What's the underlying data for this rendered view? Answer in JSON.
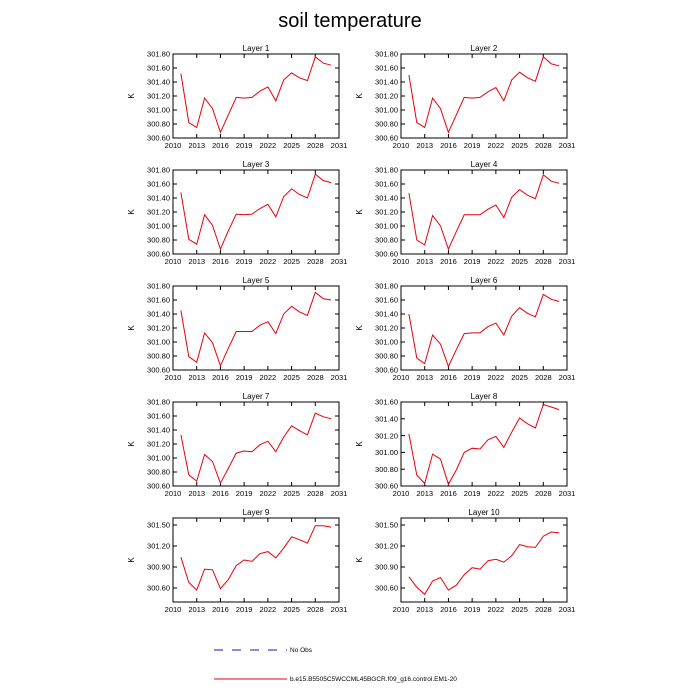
{
  "title": "soil temperature",
  "legend": [
    {
      "label": "No Obs",
      "color": "#1a1aa6",
      "dash": true
    },
    {
      "label": "b.e15.B5505C5WCCML45BGCR.f09_g16.control.EM1-20",
      "color": "#e8000b",
      "dash": false
    }
  ],
  "chart_data": [
    {
      "type": "line",
      "title": "Layer 1",
      "ylabel": "K",
      "xlim": [
        2010,
        2031
      ],
      "ylim": [
        300.6,
        301.8
      ],
      "yticks": [
        "300.60",
        "300.80",
        "301.00",
        "301.20",
        "301.40",
        "301.60",
        "301.80"
      ],
      "xticks": [
        "2010",
        "2013",
        "2016",
        "2019",
        "2022",
        "2025",
        "2028",
        "2031"
      ],
      "x": [
        2011,
        2012,
        2013,
        2014,
        2015,
        2016,
        2017,
        2018,
        2019,
        2020,
        2021,
        2022,
        2023,
        2024,
        2025,
        2026,
        2027,
        2028,
        2029,
        2030
      ],
      "series": [
        {
          "values": [
            301.52,
            300.82,
            300.75,
            301.17,
            301.02,
            300.68,
            300.93,
            301.18,
            301.17,
            301.18,
            301.27,
            301.33,
            301.13,
            301.43,
            301.53,
            301.46,
            301.42,
            301.76,
            301.67,
            301.64
          ]
        }
      ]
    },
    {
      "type": "line",
      "title": "Layer 2",
      "ylabel": "K",
      "xlim": [
        2010,
        2031
      ],
      "ylim": [
        300.6,
        301.8
      ],
      "yticks": [
        "300.60",
        "300.80",
        "301.00",
        "301.20",
        "301.40",
        "301.60",
        "301.80"
      ],
      "xticks": [
        "2010",
        "2013",
        "2016",
        "2019",
        "2022",
        "2025",
        "2028",
        "2031"
      ],
      "x": [
        2011,
        2012,
        2013,
        2014,
        2015,
        2016,
        2017,
        2018,
        2019,
        2020,
        2021,
        2022,
        2023,
        2024,
        2025,
        2026,
        2027,
        2028,
        2029,
        2030
      ],
      "series": [
        {
          "values": [
            301.5,
            300.82,
            300.75,
            301.17,
            301.02,
            300.68,
            300.93,
            301.18,
            301.17,
            301.18,
            301.26,
            301.32,
            301.13,
            301.43,
            301.54,
            301.46,
            301.41,
            301.76,
            301.66,
            301.63
          ]
        }
      ]
    },
    {
      "type": "line",
      "title": "Layer 3",
      "ylabel": "K",
      "xlim": [
        2010,
        2031
      ],
      "ylim": [
        300.6,
        301.8
      ],
      "yticks": [
        "300.60",
        "300.80",
        "301.00",
        "301.20",
        "301.40",
        "301.60",
        "301.80"
      ],
      "xticks": [
        "2010",
        "2013",
        "2016",
        "2019",
        "2022",
        "2025",
        "2028",
        "2031"
      ],
      "x": [
        2011,
        2012,
        2013,
        2014,
        2015,
        2016,
        2017,
        2018,
        2019,
        2020,
        2021,
        2022,
        2023,
        2024,
        2025,
        2026,
        2027,
        2028,
        2029,
        2030
      ],
      "series": [
        {
          "values": [
            301.48,
            300.81,
            300.74,
            301.16,
            301.01,
            300.67,
            300.93,
            301.17,
            301.16,
            301.17,
            301.25,
            301.31,
            301.13,
            301.42,
            301.53,
            301.45,
            301.4,
            301.74,
            301.65,
            301.62
          ]
        }
      ]
    },
    {
      "type": "line",
      "title": "Layer 4",
      "ylabel": "K",
      "xlim": [
        2010,
        2031
      ],
      "ylim": [
        300.6,
        301.8
      ],
      "yticks": [
        "300.60",
        "300.80",
        "301.00",
        "301.20",
        "301.40",
        "301.60",
        "301.80"
      ],
      "xticks": [
        "2010",
        "2013",
        "2016",
        "2019",
        "2022",
        "2025",
        "2028",
        "2031"
      ],
      "x": [
        2011,
        2012,
        2013,
        2014,
        2015,
        2016,
        2017,
        2018,
        2019,
        2020,
        2021,
        2022,
        2023,
        2024,
        2025,
        2026,
        2027,
        2028,
        2029,
        2030
      ],
      "series": [
        {
          "values": [
            301.47,
            300.8,
            300.73,
            301.15,
            301.0,
            300.67,
            300.92,
            301.16,
            301.16,
            301.16,
            301.24,
            301.3,
            301.12,
            301.41,
            301.52,
            301.44,
            301.39,
            301.73,
            301.64,
            301.61
          ]
        }
      ]
    },
    {
      "type": "line",
      "title": "Layer 5",
      "ylabel": "K",
      "xlim": [
        2010,
        2031
      ],
      "ylim": [
        300.6,
        301.8
      ],
      "yticks": [
        "300.60",
        "300.80",
        "301.00",
        "301.20",
        "301.40",
        "301.60",
        "301.80"
      ],
      "xticks": [
        "2010",
        "2013",
        "2016",
        "2019",
        "2022",
        "2025",
        "2028",
        "2031"
      ],
      "x": [
        2011,
        2012,
        2013,
        2014,
        2015,
        2016,
        2017,
        2018,
        2019,
        2020,
        2021,
        2022,
        2023,
        2024,
        2025,
        2026,
        2027,
        2028,
        2029,
        2030
      ],
      "series": [
        {
          "values": [
            301.45,
            300.79,
            300.71,
            301.13,
            300.99,
            300.66,
            300.91,
            301.15,
            301.15,
            301.15,
            301.24,
            301.29,
            301.12,
            301.4,
            301.51,
            301.43,
            301.38,
            301.71,
            301.62,
            301.6
          ]
        }
      ]
    },
    {
      "type": "line",
      "title": "Layer 6",
      "ylabel": "K",
      "xlim": [
        2010,
        2031
      ],
      "ylim": [
        300.6,
        301.8
      ],
      "yticks": [
        "300.60",
        "300.80",
        "301.00",
        "301.20",
        "301.40",
        "301.60",
        "301.80"
      ],
      "xticks": [
        "2010",
        "2013",
        "2016",
        "2019",
        "2022",
        "2025",
        "2028",
        "2031"
      ],
      "x": [
        2011,
        2012,
        2013,
        2014,
        2015,
        2016,
        2017,
        2018,
        2019,
        2020,
        2021,
        2022,
        2023,
        2024,
        2025,
        2026,
        2027,
        2028,
        2029,
        2030
      ],
      "series": [
        {
          "values": [
            301.4,
            300.77,
            300.69,
            301.1,
            300.97,
            300.65,
            300.89,
            301.12,
            301.13,
            301.13,
            301.22,
            301.27,
            301.1,
            301.37,
            301.49,
            301.41,
            301.36,
            301.68,
            301.61,
            301.58
          ]
        }
      ]
    },
    {
      "type": "line",
      "title": "Layer 7",
      "ylabel": "K",
      "xlim": [
        2010,
        2031
      ],
      "ylim": [
        300.6,
        301.8
      ],
      "yticks": [
        "300.60",
        "300.80",
        "301.00",
        "301.20",
        "301.40",
        "301.60",
        "301.80"
      ],
      "xticks": [
        "2010",
        "2013",
        "2016",
        "2019",
        "2022",
        "2025",
        "2028",
        "2031"
      ],
      "x": [
        2011,
        2012,
        2013,
        2014,
        2015,
        2016,
        2017,
        2018,
        2019,
        2020,
        2021,
        2022,
        2023,
        2024,
        2025,
        2026,
        2027,
        2028,
        2029,
        2030
      ],
      "series": [
        {
          "values": [
            301.33,
            300.76,
            300.67,
            301.05,
            300.95,
            300.64,
            300.85,
            301.07,
            301.1,
            301.09,
            301.19,
            301.24,
            301.09,
            301.3,
            301.46,
            301.39,
            301.33,
            301.64,
            301.59,
            301.56
          ]
        }
      ]
    },
    {
      "type": "line",
      "title": "Layer 8",
      "ylabel": "K",
      "xlim": [
        2010,
        2031
      ],
      "ylim": [
        300.6,
        301.6
      ],
      "yticks": [
        "300.60",
        "300.80",
        "301.00",
        "301.20",
        "301.40",
        "301.60"
      ],
      "xticks": [
        "2010",
        "2013",
        "2016",
        "2019",
        "2022",
        "2025",
        "2028",
        "2031"
      ],
      "x": [
        2011,
        2012,
        2013,
        2014,
        2015,
        2016,
        2017,
        2018,
        2019,
        2020,
        2021,
        2022,
        2023,
        2024,
        2025,
        2026,
        2027,
        2028,
        2029,
        2030
      ],
      "series": [
        {
          "values": [
            301.22,
            300.73,
            300.63,
            300.98,
            300.92,
            300.62,
            300.79,
            301.0,
            301.05,
            301.04,
            301.15,
            301.19,
            301.06,
            301.24,
            301.41,
            301.34,
            301.29,
            301.57,
            301.54,
            301.51
          ]
        }
      ]
    },
    {
      "type": "line",
      "title": "Layer 9",
      "ylabel": "K",
      "xlim": [
        2010,
        2031
      ],
      "ylim": [
        300.4,
        301.6
      ],
      "yticks": [
        "300.60",
        "300.90",
        "301.20",
        "301.50"
      ],
      "xticks": [
        "2010",
        "2013",
        "2016",
        "2019",
        "2022",
        "2025",
        "2028",
        "2031"
      ],
      "x": [
        2011,
        2012,
        2013,
        2014,
        2015,
        2016,
        2017,
        2018,
        2019,
        2020,
        2021,
        2022,
        2023,
        2024,
        2025,
        2026,
        2027,
        2028,
        2029,
        2030
      ],
      "series": [
        {
          "values": [
            301.04,
            300.68,
            300.57,
            300.87,
            300.86,
            300.59,
            300.72,
            300.92,
            301.0,
            300.98,
            301.09,
            301.12,
            301.03,
            301.17,
            301.33,
            301.29,
            301.24,
            301.49,
            301.49,
            301.47
          ]
        }
      ]
    },
    {
      "type": "line",
      "title": "Layer 10",
      "ylabel": "K",
      "xlim": [
        2010,
        2031
      ],
      "ylim": [
        300.4,
        301.6
      ],
      "yticks": [
        "300.60",
        "300.90",
        "301.20",
        "301.50"
      ],
      "xticks": [
        "2010",
        "2013",
        "2016",
        "2019",
        "2022",
        "2025",
        "2028",
        "2031"
      ],
      "x": [
        2011,
        2012,
        2013,
        2014,
        2015,
        2016,
        2017,
        2018,
        2019,
        2020,
        2021,
        2022,
        2023,
        2024,
        2025,
        2026,
        2027,
        2028,
        2029,
        2030
      ],
      "series": [
        {
          "values": [
            300.76,
            300.61,
            300.51,
            300.7,
            300.75,
            300.57,
            300.64,
            300.79,
            300.89,
            300.87,
            300.99,
            301.01,
            300.97,
            301.06,
            301.22,
            301.19,
            301.18,
            301.34,
            301.4,
            301.39
          ]
        }
      ]
    }
  ]
}
